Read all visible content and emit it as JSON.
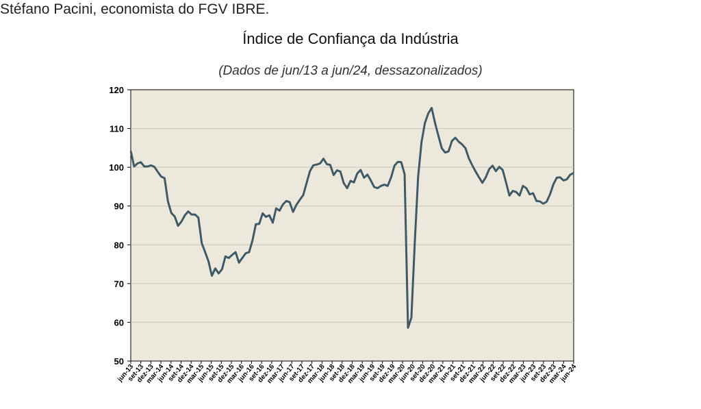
{
  "header": {
    "byline": "Stéfano Pacini, economista do FGV IBRE."
  },
  "chart_data": {
    "type": "line",
    "title": "Índice de Confiança da Indústria",
    "subtitle": "(Dados de jun/13 a jun/24, dessazonalizados)",
    "xlabel": "",
    "ylabel": "",
    "ylim": [
      50,
      120
    ],
    "yticks": [
      50,
      60,
      70,
      80,
      90,
      100,
      110,
      120
    ],
    "grid": true,
    "colors": {
      "line": "#3f5a66",
      "plot_background": "#ece9dc",
      "grid": "#c9c6b9"
    },
    "xtick_labels": [
      "jun-13",
      "set-13",
      "dez-13",
      "mar-14",
      "jun-14",
      "set-14",
      "dez-14",
      "mar-15",
      "jun-15",
      "set-15",
      "dez-15",
      "mar-16",
      "jun-16",
      "set-16",
      "dez-16",
      "mar-17",
      "jun-17",
      "set-17",
      "dez-17",
      "mar-18",
      "jun-18",
      "set-18",
      "dez-18",
      "mar-19",
      "jun-19",
      "set-19",
      "dez-19",
      "mar-20",
      "jun-20",
      "set-20",
      "dez-20",
      "mar-21",
      "jun-21",
      "set-21",
      "dez-21",
      "mar-22",
      "jun-22",
      "set-22",
      "dez-22",
      "mar-23",
      "jun-23",
      "set-23",
      "dez-23",
      "mar-24",
      "jun-24"
    ],
    "values": [
      104.2,
      100.2,
      101.0,
      101.3,
      100.2,
      100.2,
      100.5,
      100.1,
      98.8,
      97.6,
      97.2,
      91.2,
      88.2,
      87.3,
      84.9,
      86.0,
      87.6,
      88.6,
      87.8,
      87.8,
      87.0,
      80.4,
      78.1,
      75.7,
      72.0,
      73.9,
      72.6,
      73.7,
      77.0,
      76.6,
      77.4,
      78.1,
      75.4,
      76.6,
      77.8,
      78.1,
      81.1,
      85.3,
      85.4,
      88.1,
      87.2,
      87.6,
      85.7,
      89.4,
      88.8,
      90.4,
      91.3,
      91.0,
      88.5,
      90.3,
      91.6,
      92.8,
      95.9,
      99.0,
      100.5,
      100.7,
      101.0,
      102.2,
      100.8,
      100.6,
      98.0,
      99.2,
      98.9,
      95.9,
      94.6,
      96.5,
      96.1,
      98.4,
      99.3,
      97.3,
      98.1,
      96.6,
      94.9,
      94.6,
      95.2,
      95.5,
      95.2,
      97.4,
      100.4,
      101.4,
      101.3,
      98.2,
      58.6,
      61.2,
      80.5,
      97.6,
      106.5,
      111.4,
      113.9,
      115.3,
      111.4,
      108.1,
      104.9,
      103.8,
      104.1,
      106.8,
      107.6,
      106.6,
      105.9,
      104.9,
      102.3,
      100.5,
      98.9,
      97.4,
      96.0,
      97.4,
      99.5,
      100.4,
      99.0,
      100.1,
      99.3,
      96.1,
      92.7,
      93.9,
      93.6,
      92.7,
      95.2,
      94.6,
      93.0,
      93.3,
      91.3,
      91.2,
      90.6,
      91.1,
      93.0,
      95.6,
      97.3,
      97.4,
      96.6,
      96.9,
      98.1,
      98.5
    ]
  }
}
